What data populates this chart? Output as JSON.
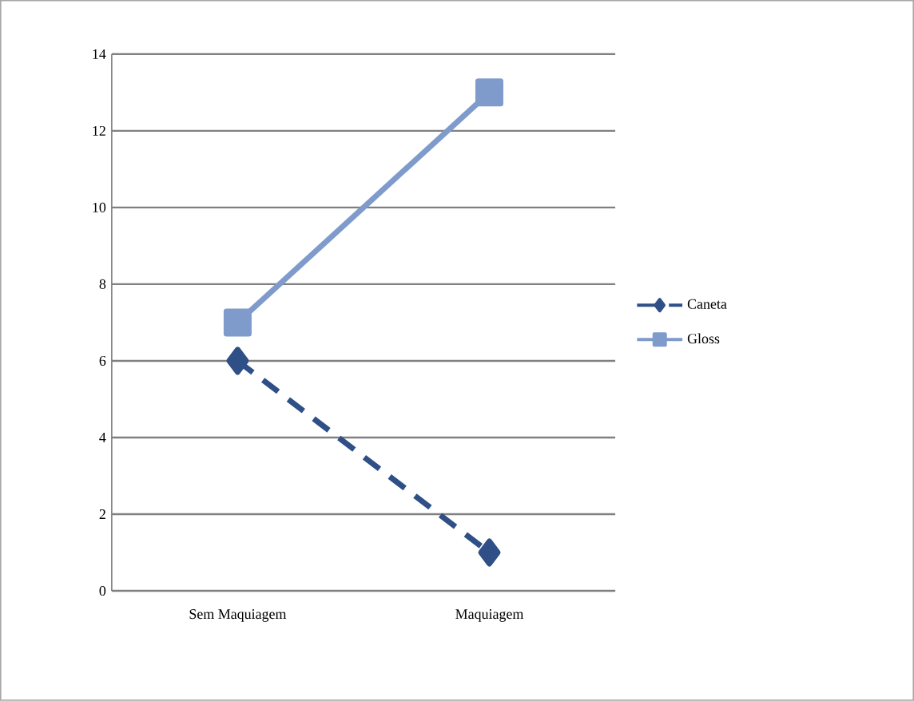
{
  "chart_data": {
    "type": "line",
    "categories": [
      "Sem Maquiagem",
      "Maquiagem"
    ],
    "series": [
      {
        "name": "Caneta",
        "color": "#2f4f87",
        "values": [
          6,
          1
        ],
        "marker": "diamond",
        "line_style": "dashed"
      },
      {
        "name": "Gloss",
        "color": "#7f9bcb",
        "values": [
          7,
          13
        ],
        "marker": "square",
        "line_style": "solid"
      }
    ],
    "ylim": [
      0,
      14
    ],
    "yticks": [
      0,
      2,
      4,
      6,
      8,
      10,
      12,
      14
    ],
    "grid": "y",
    "legend": "right"
  }
}
